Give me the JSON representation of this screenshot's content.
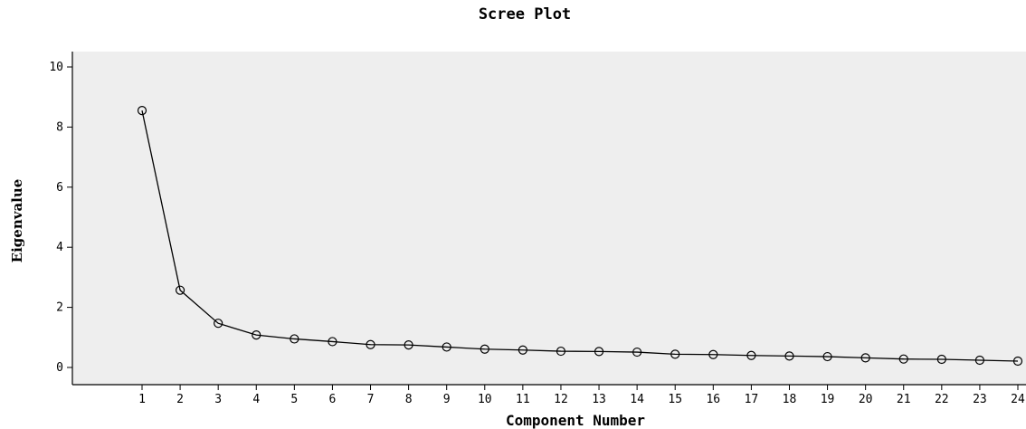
{
  "chart_data": {
    "type": "line",
    "title": "Scree Plot",
    "xlabel": "Component Number",
    "ylabel": "Eigenvalue",
    "x": [
      1,
      2,
      3,
      4,
      5,
      6,
      7,
      8,
      9,
      10,
      11,
      12,
      13,
      14,
      15,
      16,
      17,
      18,
      19,
      20,
      21,
      22,
      23,
      24
    ],
    "series": [
      {
        "values": [
          8.55,
          2.57,
          1.47,
          1.08,
          0.95,
          0.86,
          0.76,
          0.75,
          0.68,
          0.61,
          0.58,
          0.54,
          0.53,
          0.51,
          0.44,
          0.43,
          0.4,
          0.38,
          0.36,
          0.32,
          0.28,
          0.27,
          0.24,
          0.21
        ]
      }
    ],
    "xlim": [
      0,
      24
    ],
    "ylim": [
      -0.5,
      10.5
    ],
    "yticks": [
      0,
      2,
      4,
      6,
      8,
      10
    ],
    "xticks": [
      1,
      2,
      3,
      4,
      5,
      6,
      7,
      8,
      9,
      10,
      11,
      12,
      13,
      14,
      15,
      16,
      17,
      18,
      19,
      20,
      21,
      22,
      23,
      24
    ],
    "marker": "circle",
    "grid": false,
    "legend": "none",
    "colors": {
      "plot_background": "#eeeeee",
      "line": "#000000",
      "marker_stroke": "#000000"
    }
  }
}
